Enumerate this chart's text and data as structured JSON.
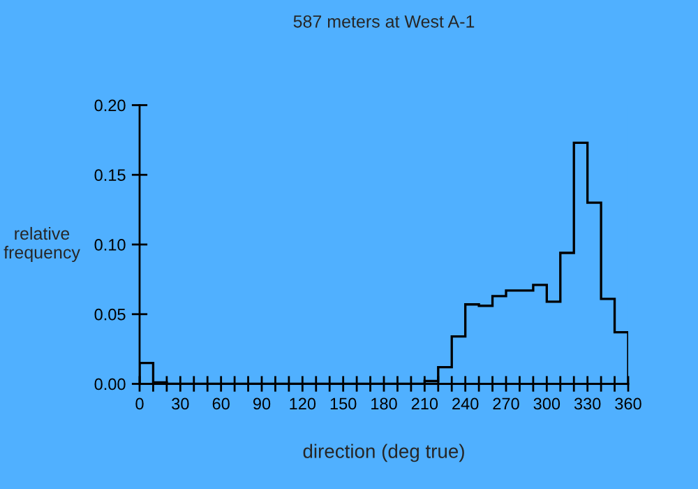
{
  "chart_data": {
    "type": "histogram",
    "title": "587 meters at West A-1",
    "xlabel": "direction (deg true)",
    "ylabel": "relative\nfrequency",
    "bins": [
      0,
      10,
      20,
      30,
      40,
      50,
      60,
      70,
      80,
      90,
      100,
      110,
      120,
      130,
      140,
      150,
      160,
      170,
      180,
      190,
      200,
      210,
      220,
      230,
      240,
      250,
      260,
      270,
      280,
      290,
      300,
      310,
      320,
      330,
      340,
      350,
      360
    ],
    "values": [
      0.015,
      0.001,
      0,
      0,
      0,
      0,
      0,
      0,
      0,
      0,
      0,
      0,
      0,
      0,
      0,
      0,
      0,
      0,
      0,
      0,
      0,
      0.002,
      0.012,
      0.034,
      0.057,
      0.056,
      0.063,
      0.067,
      0.067,
      0.071,
      0.059,
      0.094,
      0.173,
      0.13,
      0.061,
      0.037
    ],
    "color": "#000000",
    "xlim": [
      0,
      360
    ],
    "ylim": [
      0,
      0.2
    ],
    "xticks": [
      0,
      {
        "value": 10,
        "label": null
      },
      {
        "value": 20,
        "label": null
      },
      30,
      {
        "value": 40,
        "label": null
      },
      {
        "value": 50,
        "label": null
      },
      60,
      {
        "value": 70,
        "label": null
      },
      {
        "value": 80,
        "label": null
      },
      90,
      {
        "value": 100,
        "label": null
      },
      {
        "value": 110,
        "label": null
      },
      120,
      {
        "value": 130,
        "label": null
      },
      {
        "value": 140,
        "label": null
      },
      150,
      {
        "value": 160,
        "label": null
      },
      {
        "value": 170,
        "label": null
      },
      180,
      {
        "value": 190,
        "label": null
      },
      {
        "value": 200,
        "label": null
      },
      210,
      {
        "value": 220,
        "label": null
      },
      {
        "value": 230,
        "label": null
      },
      240,
      {
        "value": 250,
        "label": null
      },
      {
        "value": 260,
        "label": null
      },
      270,
      {
        "value": 280,
        "label": null
      },
      {
        "value": 290,
        "label": null
      },
      300,
      {
        "value": 310,
        "label": null
      },
      {
        "value": 320,
        "label": null
      },
      330,
      {
        "value": 340,
        "label": null
      },
      {
        "value": 350,
        "label": null
      },
      360
    ],
    "yticks": [
      {
        "value": 0,
        "label": "0.00"
      },
      {
        "value": 0.05,
        "label": "0.05"
      },
      {
        "value": 0.1,
        "label": "0.10"
      },
      {
        "value": 0.15,
        "label": "0.15"
      },
      {
        "value": 0.2,
        "label": "0.20"
      }
    ],
    "grid": false,
    "legend": false
  }
}
